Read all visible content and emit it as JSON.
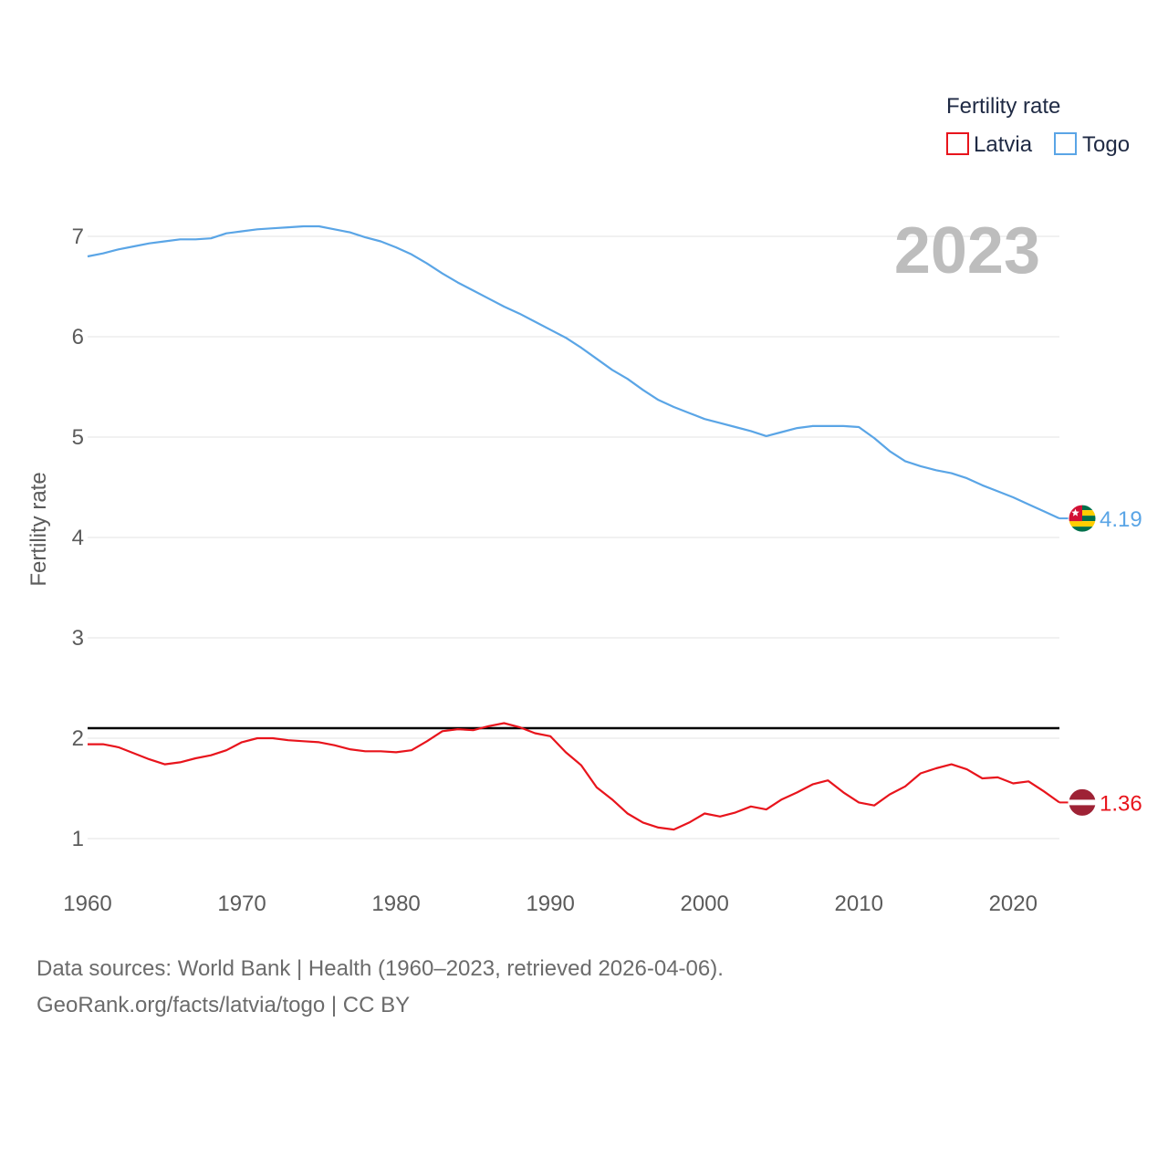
{
  "chart_data": {
    "type": "line",
    "title": "Fertility rate",
    "current_year_label": "2023",
    "ylabel": "Fertility rate",
    "xlabel": "",
    "xlim": [
      1960,
      2023
    ],
    "ylim": [
      0.6,
      7.5
    ],
    "x_ticks": [
      1960,
      1970,
      1980,
      1990,
      2000,
      2010,
      2020
    ],
    "y_ticks": [
      1,
      2,
      3,
      4,
      5,
      6,
      7
    ],
    "reference_line": {
      "value": 2.1,
      "color": "#000000"
    },
    "legend": {
      "title": "Fertility rate",
      "position": "top-right"
    },
    "x": [
      1960,
      1961,
      1962,
      1963,
      1964,
      1965,
      1966,
      1967,
      1968,
      1969,
      1970,
      1971,
      1972,
      1973,
      1974,
      1975,
      1976,
      1977,
      1978,
      1979,
      1980,
      1981,
      1982,
      1983,
      1984,
      1985,
      1986,
      1987,
      1988,
      1989,
      1990,
      1991,
      1992,
      1993,
      1994,
      1995,
      1996,
      1997,
      1998,
      1999,
      2000,
      2001,
      2002,
      2003,
      2004,
      2005,
      2006,
      2007,
      2008,
      2009,
      2010,
      2011,
      2012,
      2013,
      2014,
      2015,
      2016,
      2017,
      2018,
      2019,
      2020,
      2021,
      2022,
      2023
    ],
    "series": [
      {
        "name": "Latvia",
        "color": "#e8141c",
        "flag": "latvia-flag",
        "end_label": "1.36",
        "values": [
          1.94,
          1.94,
          1.91,
          1.85,
          1.79,
          1.74,
          1.76,
          1.8,
          1.83,
          1.88,
          1.96,
          2.0,
          2.0,
          1.98,
          1.97,
          1.96,
          1.93,
          1.89,
          1.87,
          1.87,
          1.86,
          1.88,
          1.97,
          2.07,
          2.09,
          2.08,
          2.12,
          2.15,
          2.11,
          2.05,
          2.02,
          1.86,
          1.73,
          1.51,
          1.39,
          1.25,
          1.16,
          1.11,
          1.09,
          1.16,
          1.25,
          1.22,
          1.26,
          1.32,
          1.29,
          1.39,
          1.46,
          1.54,
          1.58,
          1.46,
          1.36,
          1.33,
          1.44,
          1.52,
          1.65,
          1.7,
          1.74,
          1.69,
          1.6,
          1.61,
          1.55,
          1.57,
          1.47,
          1.36
        ]
      },
      {
        "name": "Togo",
        "color": "#5aa5e6",
        "flag": "togo-flag",
        "end_label": "4.19",
        "values": [
          6.8,
          6.83,
          6.87,
          6.9,
          6.93,
          6.95,
          6.97,
          6.97,
          6.98,
          7.03,
          7.05,
          7.07,
          7.08,
          7.09,
          7.1,
          7.1,
          7.07,
          7.04,
          6.99,
          6.95,
          6.89,
          6.82,
          6.73,
          6.63,
          6.54,
          6.46,
          6.38,
          6.3,
          6.23,
          6.15,
          6.07,
          5.99,
          5.89,
          5.78,
          5.67,
          5.58,
          5.47,
          5.37,
          5.3,
          5.24,
          5.18,
          5.14,
          5.1,
          5.06,
          5.01,
          5.05,
          5.09,
          5.11,
          5.11,
          5.11,
          5.1,
          4.99,
          4.86,
          4.76,
          4.71,
          4.67,
          4.64,
          4.59,
          4.52,
          4.46,
          4.4,
          4.33,
          4.26,
          4.19
        ]
      }
    ]
  },
  "footer": {
    "source_line": "Data sources: World Bank | Health (1960–2023, retrieved 2026-04-06).",
    "link_line": "GeoRank.org/facts/latvia/togo | CC BY"
  }
}
